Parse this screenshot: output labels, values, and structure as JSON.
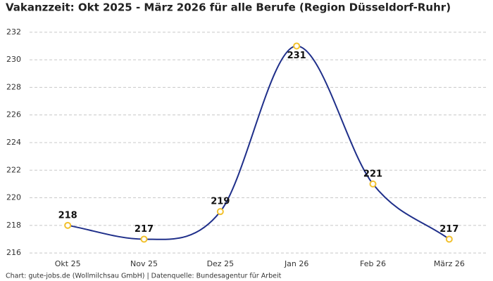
{
  "chart_data": {
    "type": "line",
    "title": "Vakanzzeit: Okt 2025 - März 2026 für alle Berufe (Region Düsseldorf-Ruhr)",
    "footnote": "Chart: gute-jobs.de (Wollmilchsau GmbH) | Datenquelle: Bundesagentur für Arbeit",
    "categories": [
      "Okt 25",
      "Nov 25",
      "Dez 25",
      "Jan 26",
      "Feb 26",
      "März 26"
    ],
    "values": [
      218,
      217,
      219,
      231,
      221,
      217
    ],
    "color": "#1f2f8a",
    "marker_color": "#f2c12e",
    "ylim": [
      215.7,
      232.5
    ],
    "yticks": [
      216,
      218,
      220,
      222,
      224,
      226,
      228,
      230,
      232
    ],
    "grid": true
  }
}
